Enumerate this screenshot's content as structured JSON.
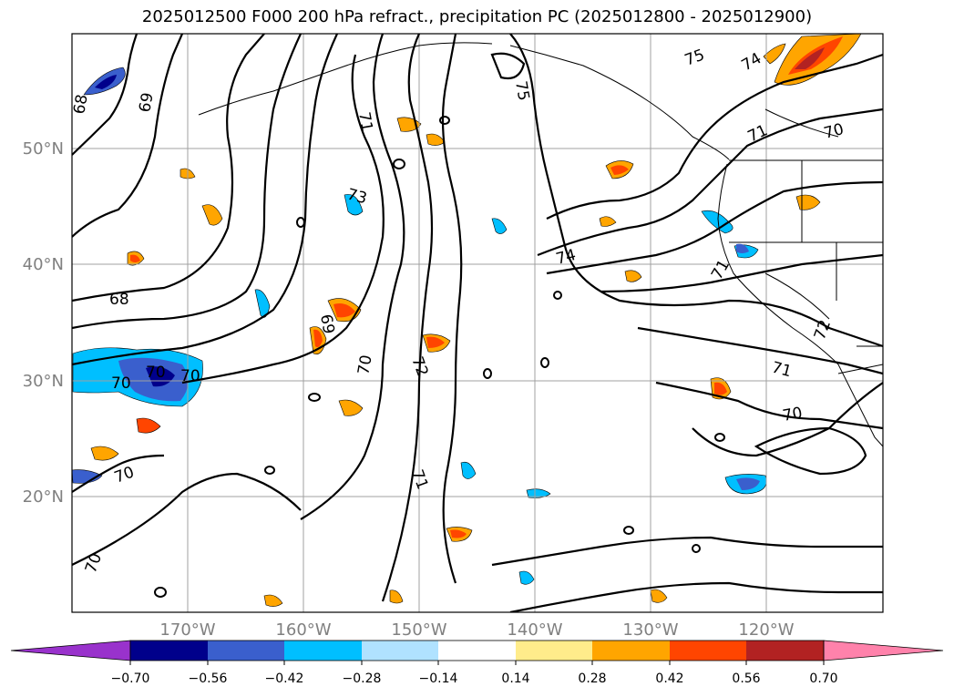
{
  "title": "2025012500 F000 200 hPa refract., precipitation PC (2025012800 - 2025012900)",
  "latitude_labels": [
    "50°N",
    "40°N",
    "30°N",
    "20°N"
  ],
  "longitude_labels": [
    "170°W",
    "160°W",
    "150°W",
    "140°W",
    "130°W",
    "120°W"
  ],
  "colorbar": {
    "tick_labels": [
      "−0.70",
      "−0.56",
      "−0.42",
      "−0.28",
      "−0.14",
      "0.14",
      "0.28",
      "0.42",
      "0.56",
      "0.70"
    ],
    "colors": [
      "#9932CC",
      "#00008B",
      "#3A5FCD",
      "#00BFFF",
      "#B0E2FF",
      "#FFFFFF",
      "#FFEC8B",
      "#FFA500",
      "#FF4500",
      "#B22222",
      "#FF82AB"
    ]
  },
  "contour_labels": [
    "68",
    "69",
    "75",
    "75",
    "74",
    "70",
    "71",
    "73",
    "74",
    "68",
    "69",
    "70",
    "72",
    "71",
    "71",
    "70",
    "70",
    "70",
    "70",
    "70",
    "71",
    "72",
    "71",
    "70"
  ],
  "colors": {
    "contour": "#000000",
    "grid": "#a0a0a0",
    "coast": "#000000"
  }
}
